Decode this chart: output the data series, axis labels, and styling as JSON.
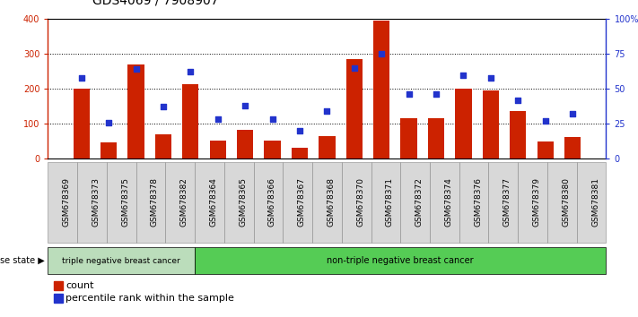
{
  "title": "GDS4069 / 7908907",
  "samples": [
    "GSM678369",
    "GSM678373",
    "GSM678375",
    "GSM678378",
    "GSM678382",
    "GSM678364",
    "GSM678365",
    "GSM678366",
    "GSM678367",
    "GSM678368",
    "GSM678370",
    "GSM678371",
    "GSM678372",
    "GSM678374",
    "GSM678376",
    "GSM678377",
    "GSM678379",
    "GSM678380",
    "GSM678381"
  ],
  "counts": [
    200,
    47,
    270,
    70,
    213,
    52,
    83,
    52,
    30,
    65,
    285,
    395,
    115,
    115,
    200,
    195,
    137,
    48,
    62
  ],
  "percentiles": [
    58,
    26,
    64,
    37,
    62,
    28,
    38,
    28,
    20,
    34,
    65,
    75,
    46,
    46,
    60,
    58,
    42,
    27,
    32
  ],
  "triple_neg_count": 5,
  "bar_color": "#cc2200",
  "dot_color": "#2233cc",
  "triple_neg_color": "#bbddbb",
  "non_triple_neg_color": "#55cc55",
  "ylim_left": [
    0,
    400
  ],
  "ylim_right": [
    0,
    100
  ],
  "yticks_left": [
    0,
    100,
    200,
    300,
    400
  ],
  "ytick_labels_right": [
    "0",
    "25",
    "50",
    "75",
    "100%"
  ],
  "title_fontsize": 10,
  "tick_fontsize": 7,
  "label_fontsize": 7,
  "legend_fontsize": 8
}
